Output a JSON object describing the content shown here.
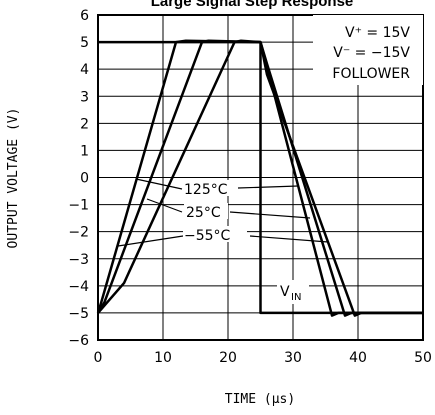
{
  "chart_data": {
    "type": "line",
    "title": "Large Signal Step Response",
    "xlabel": "TIME (μs)",
    "ylabel": "OUTPUT VOLTAGE (V)",
    "xlim": [
      0,
      50
    ],
    "ylim": [
      -6,
      6
    ],
    "x_ticks": [
      0,
      10,
      20,
      30,
      40,
      50
    ],
    "y_ticks": [
      -6,
      -5,
      -4,
      -3,
      -2,
      -1,
      0,
      1,
      2,
      3,
      4,
      5,
      6
    ],
    "grid": true,
    "conditions": {
      "vplus": "V⁺ = 15V",
      "vminus": "V⁻ = −15V",
      "mode": "FOLLOWER"
    },
    "series": [
      {
        "name": "V_IN",
        "points": [
          [
            0,
            5
          ],
          [
            25,
            5
          ],
          [
            25,
            -5
          ],
          [
            50,
            -5
          ]
        ]
      },
      {
        "name": "125°C",
        "points": [
          [
            0,
            -5
          ],
          [
            0.5,
            -4.6
          ],
          [
            12,
            5
          ],
          [
            13.5,
            5.05
          ],
          [
            25,
            5
          ],
          [
            26,
            4.1
          ],
          [
            36,
            -5.1
          ],
          [
            37,
            -5
          ],
          [
            50,
            -5
          ]
        ]
      },
      {
        "name": "25°C",
        "points": [
          [
            0,
            -5
          ],
          [
            1,
            -4.6
          ],
          [
            16,
            5
          ],
          [
            17,
            5.05
          ],
          [
            25,
            5
          ],
          [
            26,
            4.2
          ],
          [
            38,
            -5.1
          ],
          [
            39,
            -5
          ],
          [
            50,
            -5
          ]
        ]
      },
      {
        "name": "−55°C",
        "points": [
          [
            0,
            -5
          ],
          [
            4,
            -3.9
          ],
          [
            21,
            5
          ],
          [
            22,
            5.05
          ],
          [
            25,
            5
          ],
          [
            26,
            3.8
          ],
          [
            39.5,
            -5.1
          ],
          [
            40.5,
            -5
          ],
          [
            50,
            -5
          ]
        ]
      }
    ],
    "annotations": {
      "t125": "125°C",
      "t25": "25°C",
      "tm55": "−55°C",
      "vin_base": "V",
      "vin_sub": "IN"
    }
  }
}
